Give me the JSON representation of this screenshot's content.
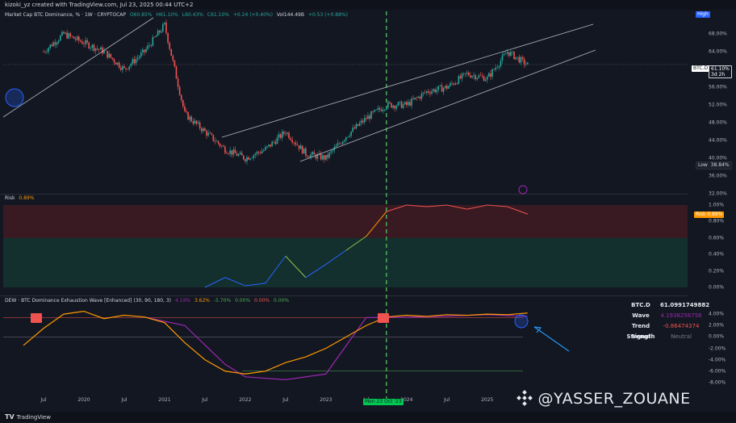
{
  "header": {
    "credit": "kizoki_yz created with TradingView.com, Jul 23, 2025 00:44 UTC+2"
  },
  "main_legend": {
    "title": "Market Cap BTC Dominance, % · 1W · CRYPTOCAP",
    "open": "O60.85%",
    "high": "H61.10%",
    "low": "L60.43%",
    "close": "C61.10%",
    "change": "+0.24 (+0.40%)",
    "vol": "Vol144.49B",
    "vol_change": "+0.53 (+0.88%)"
  },
  "risk_legend": {
    "title": "Risk",
    "value": "0.89%"
  },
  "dew_legend": {
    "title": "DEW · BTC Dominance Exhaustion Wave [Enhanced] (30, 90, 180, 3)",
    "values": [
      "4.19%",
      "3.62%",
      "-5.70%",
      "0.00%",
      "0.00%",
      "0.00%"
    ]
  },
  "price_axis": {
    "high_tag": "High",
    "low_tag": "Low",
    "low_value": "38.84%",
    "symbol_tag": "BTC.D",
    "last_value": "61.10%",
    "countdown": "3d 2h"
  },
  "risk_axis_tag": {
    "label": "Risk",
    "value": "0.89%"
  },
  "info_table": {
    "rows": [
      {
        "k": "BTC.D",
        "v": "61.0991749882"
      },
      {
        "k": "Wave",
        "v": "4.1938258756"
      },
      {
        "k": "Trend Strength",
        "v": "-0.86474374"
      },
      {
        "k": "Signal",
        "v": "Neutral"
      }
    ]
  },
  "crosshair_label": "Mon 23 Oct '23",
  "watermark": "@YASSER_ZOUANE",
  "footer": "TradingView",
  "colors": {
    "up": "#26a69a",
    "down": "#ef5350",
    "trend": "#b2b5be",
    "crosshair": "#4caf50",
    "wave": "#ff9800",
    "sig": "#9c27b0"
  },
  "chart_data": [
    {
      "type": "candlestick",
      "title": "Market Cap BTC Dominance, % · 1W · CRYPTOCAP",
      "ylabel": "%",
      "ylim": [
        32,
        72
      ],
      "y_ticks": [
        "68.00%",
        "64.00%",
        "60.00%",
        "56.00%",
        "52.00%",
        "48.00%",
        "44.00%",
        "40.00%",
        "36.00%",
        "32.00%"
      ],
      "x_ticks": [
        "Jul",
        "2020",
        "Jul",
        "2021",
        "Jul",
        "2022",
        "Jul",
        "2023",
        "Jul",
        "2024",
        "Jul",
        "2025"
      ],
      "series": [
        {
          "name": "BTC.D",
          "x": [
            "2019-07",
            "2019-10",
            "2020-01",
            "2020-04",
            "2020-07",
            "2020-10",
            "2021-01",
            "2021-04",
            "2021-07",
            "2021-10",
            "2022-01",
            "2022-04",
            "2022-07",
            "2022-10",
            "2023-01",
            "2023-04",
            "2023-07",
            "2023-10",
            "2024-01",
            "2024-04",
            "2024-07",
            "2024-10",
            "2025-01",
            "2025-04",
            "2025-07"
          ],
          "values": [
            64,
            68,
            66,
            64,
            60,
            64,
            70,
            50,
            46,
            42,
            40,
            42,
            46,
            41,
            40,
            45,
            49,
            52,
            52,
            55,
            56,
            59,
            58,
            64,
            61
          ]
        }
      ]
    },
    {
      "type": "line",
      "title": "Risk",
      "ylim": [
        0,
        1
      ],
      "y_ticks": [
        "1.00%",
        "0.80%",
        "0.60%",
        "0.40%",
        "0.20%",
        "0.00%"
      ],
      "series": [
        {
          "name": "Risk",
          "x": [
            "2021-07",
            "2021-10",
            "2022-01",
            "2022-04",
            "2022-07",
            "2022-10",
            "2023-01",
            "2023-04",
            "2023-07",
            "2023-10",
            "2024-01",
            "2024-04",
            "2024-07",
            "2024-10",
            "2025-01",
            "2025-04",
            "2025-07"
          ],
          "values": [
            0.0,
            0.12,
            0.02,
            0.05,
            0.38,
            0.12,
            0.28,
            0.45,
            0.62,
            0.92,
            1.0,
            0.98,
            1.0,
            0.95,
            1.0,
            0.98,
            0.89
          ]
        }
      ]
    },
    {
      "type": "line",
      "title": "DEW · BTC Dominance Exhaustion Wave [Enhanced] (30, 90, 180, 3)",
      "ylim": [
        -10,
        6
      ],
      "y_ticks": [
        "4.00%",
        "2.00%",
        "0.00%",
        "-2.00%",
        "-4.00%",
        "-6.00%",
        "-8.00%"
      ],
      "series": [
        {
          "name": "Wave",
          "x": [
            "2019-04",
            "2019-07",
            "2019-10",
            "2020-01",
            "2020-04",
            "2020-07",
            "2020-10",
            "2021-01",
            "2021-04",
            "2021-07",
            "2021-10",
            "2022-01",
            "2022-04",
            "2022-07",
            "2022-10",
            "2023-01",
            "2023-04",
            "2023-07",
            "2023-10",
            "2024-01",
            "2024-04",
            "2024-07",
            "2024-10",
            "2025-01",
            "2025-04",
            "2025-07"
          ],
          "values": [
            -1.5,
            1.5,
            4.0,
            4.5,
            3.2,
            3.8,
            3.5,
            2.5,
            -1.0,
            -4.0,
            -6.0,
            -6.5,
            -6.0,
            -4.5,
            -3.5,
            -2.0,
            0.0,
            2.0,
            3.5,
            3.8,
            3.6,
            3.9,
            3.8,
            4.0,
            3.9,
            4.19
          ]
        },
        {
          "name": "Signal",
          "x": [
            "2020-10",
            "2021-04",
            "2021-10",
            "2022-01",
            "2022-07",
            "2023-01",
            "2023-07",
            "2023-10",
            "2024-06",
            "2025-01",
            "2025-07"
          ],
          "values": [
            3.5,
            2.0,
            -4.8,
            -7.0,
            -7.5,
            -6.5,
            3.4,
            3.4,
            3.6,
            3.9,
            3.62
          ]
        }
      ]
    }
  ]
}
